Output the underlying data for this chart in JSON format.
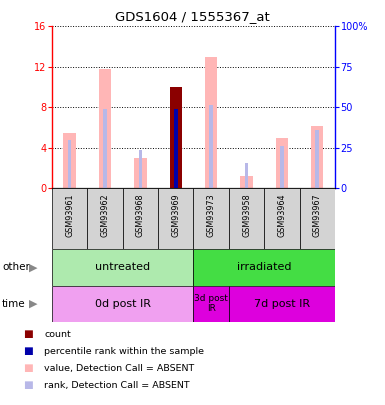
{
  "title": "GDS1604 / 1555367_at",
  "samples": [
    "GSM93961",
    "GSM93962",
    "GSM93968",
    "GSM93969",
    "GSM93973",
    "GSM93958",
    "GSM93964",
    "GSM93967"
  ],
  "value_bars": [
    5.5,
    11.8,
    3.0,
    10.0,
    13.0,
    1.2,
    5.0,
    6.2
  ],
  "rank_bars": [
    4.8,
    7.8,
    3.8,
    7.8,
    8.2,
    2.5,
    4.2,
    5.8
  ],
  "count_value": 10.0,
  "percentile_value": 7.8,
  "count_index": 3,
  "ylim": [
    0,
    16
  ],
  "y2lim": [
    0,
    100
  ],
  "yticks": [
    0,
    4,
    8,
    12,
    16
  ],
  "y2ticks": [
    0,
    25,
    50,
    75,
    100
  ],
  "y2labels": [
    "0",
    "25",
    "50",
    "75",
    "100%"
  ],
  "group_other": [
    {
      "label": "untreated",
      "start": 0,
      "end": 4,
      "color": "#aeeaae"
    },
    {
      "label": "irradiated",
      "start": 4,
      "end": 8,
      "color": "#44dd44"
    }
  ],
  "group_time": [
    {
      "label": "0d post IR",
      "start": 0,
      "end": 4,
      "color": "#f0a0f0"
    },
    {
      "label": "3d post\nIR",
      "start": 4,
      "end": 5,
      "color": "#dd00dd"
    },
    {
      "label": "7d post IR",
      "start": 5,
      "end": 8,
      "color": "#dd00dd"
    }
  ],
  "bar_color_value": "#ffb6b6",
  "bar_color_rank": "#b8b8e8",
  "bar_color_count": "#8b0000",
  "bar_color_percentile": "#0000aa",
  "legend_items": [
    {
      "label": "count",
      "color": "#8b0000"
    },
    {
      "label": "percentile rank within the sample",
      "color": "#0000aa"
    },
    {
      "label": "value, Detection Call = ABSENT",
      "color": "#ffb6b6"
    },
    {
      "label": "rank, Detection Call = ABSENT",
      "color": "#b8b8e8"
    }
  ],
  "sample_bg": "#d3d3d3",
  "value_bar_width": 0.35,
  "rank_bar_width": 0.1,
  "count_bar_width": 0.35
}
